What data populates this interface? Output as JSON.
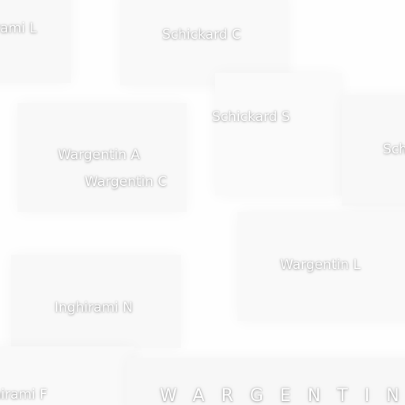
{
  "map": {
    "labels": {
      "inghirami_l": "Inghirami L",
      "schickard_c": "Schickard C",
      "schickard_s": "Schickard S",
      "schickard_partial": "Schickard",
      "wargentin_a": "Wargentin A",
      "wargentin_c": "Wargentin C",
      "wargentin_l": "Wargentin L",
      "inghirami_n": "Inghirami N",
      "inghirami_f": "Inghirami F"
    },
    "region_label": "WARGENTIN"
  }
}
